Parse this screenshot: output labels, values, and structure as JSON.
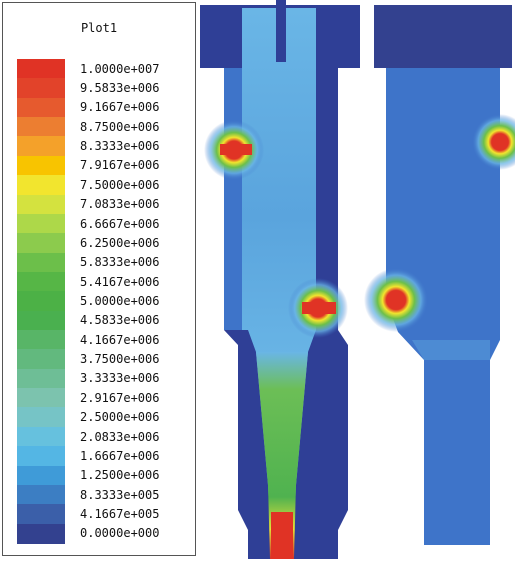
{
  "legend": {
    "title": "Plot1",
    "entries": [
      {
        "label": "1.0000e+007",
        "color": "#e03325"
      },
      {
        "label": "9.5833e+006",
        "color": "#e2432a"
      },
      {
        "label": "9.1667e+006",
        "color": "#e65a2e"
      },
      {
        "label": "8.7500e+006",
        "color": "#ec7e31"
      },
      {
        "label": "8.3333e+006",
        "color": "#f4a12a"
      },
      {
        "label": "7.9167e+006",
        "color": "#f8c400"
      },
      {
        "label": "7.5000e+006",
        "color": "#f2e52e"
      },
      {
        "label": "7.0833e+006",
        "color": "#d4e23f"
      },
      {
        "label": "6.6667e+006",
        "color": "#add849"
      },
      {
        "label": "6.2500e+006",
        "color": "#8ccb4d"
      },
      {
        "label": "5.8333e+006",
        "color": "#6cbf4a"
      },
      {
        "label": "5.4167e+006",
        "color": "#56b646"
      },
      {
        "label": "5.0000e+006",
        "color": "#4cb146"
      },
      {
        "label": "4.5833e+006",
        "color": "#4ab04f"
      },
      {
        "label": "4.1667e+006",
        "color": "#58b567"
      },
      {
        "label": "3.7500e+006",
        "color": "#62b97e"
      },
      {
        "label": "3.3333e+006",
        "color": "#6ebe96"
      },
      {
        "label": "2.9167e+006",
        "color": "#7cc3ae"
      },
      {
        "label": "2.5000e+006",
        "color": "#76c4c6"
      },
      {
        "label": "2.0833e+006",
        "color": "#66c1de"
      },
      {
        "label": "1.6667e+006",
        "color": "#54b6e4"
      },
      {
        "label": "1.2500e+006",
        "color": "#3f9bd8"
      },
      {
        "label": "8.3333e+005",
        "color": "#3c7ec3"
      },
      {
        "label": "4.1667e+005",
        "color": "#3b5fa9"
      },
      {
        "label": "0.0000e+000",
        "color": "#33418f"
      }
    ]
  },
  "plot_colors": {
    "field_base": "#3e74c9",
    "field_light": "#6ab6e6",
    "solid_dark": "#2f3f96",
    "hot": "#e03325",
    "green": "#4cb146",
    "yellow": "#f2e52e"
  }
}
